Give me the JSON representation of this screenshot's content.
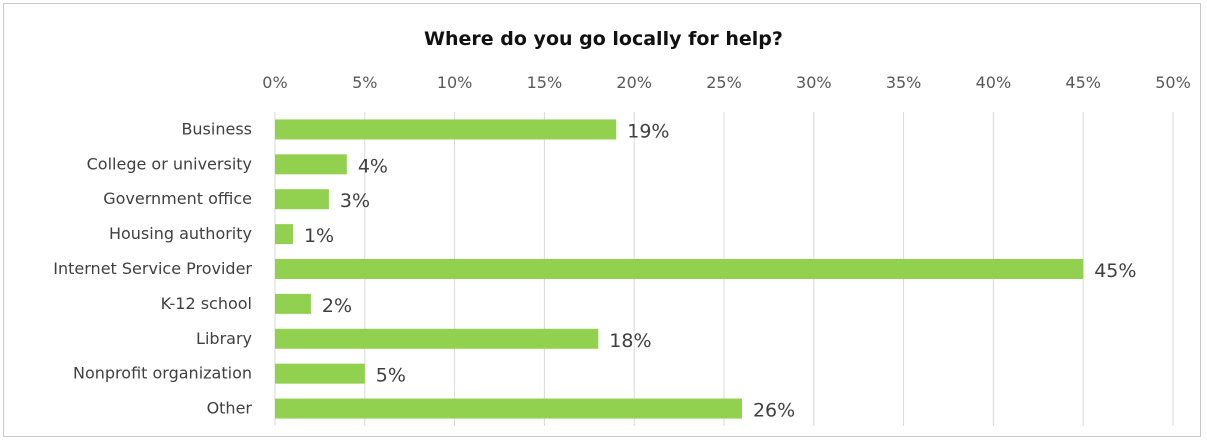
{
  "chart_data": {
    "type": "bar",
    "orientation": "horizontal",
    "title": "Where do you go locally for help?",
    "categories": [
      "Business",
      "College or university",
      "Government office",
      "Housing authority",
      "Internet Service Provider",
      "K-12 school",
      "Library",
      "Nonprofit organization",
      "Other"
    ],
    "values": [
      19,
      4,
      3,
      1,
      45,
      2,
      18,
      5,
      26
    ],
    "data_labels": [
      "19%",
      "4%",
      "3%",
      "1%",
      "45%",
      "2%",
      "18%",
      "5%",
      "26%"
    ],
    "xticks": [
      "0%",
      "5%",
      "10%",
      "15%",
      "20%",
      "25%",
      "30%",
      "35%",
      "40%",
      "45%",
      "50%"
    ],
    "xlim": [
      0,
      50
    ],
    "grid": true,
    "xaxis_position": "top",
    "bar_color": "#92d050"
  }
}
